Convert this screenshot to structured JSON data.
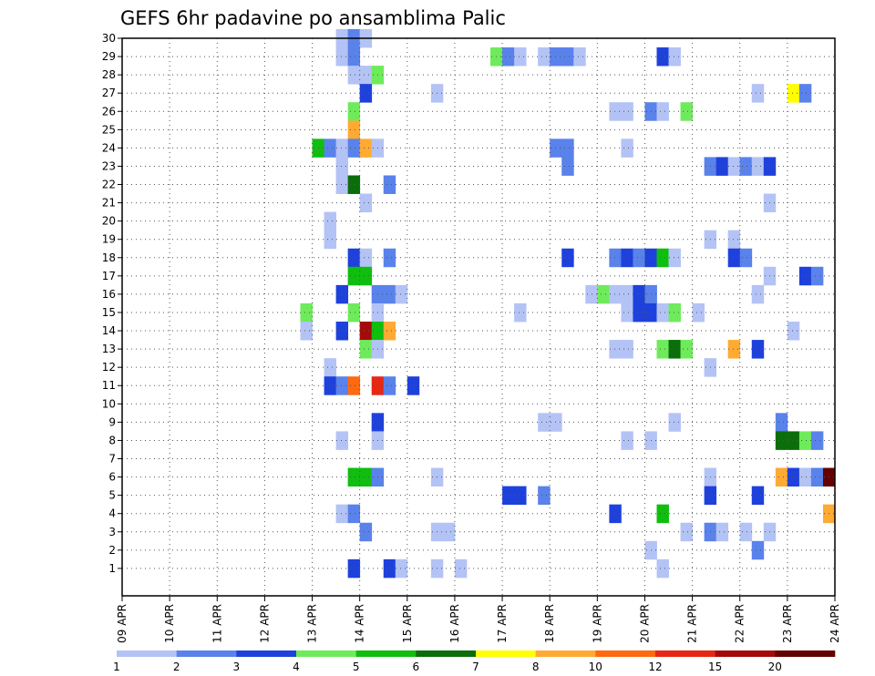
{
  "chart_data": {
    "type": "heatmap",
    "title": "GEFS 6hr padavine po ansamblima Palic",
    "x_ticks": [
      "09 APR",
      "10 APR",
      "11 APR",
      "12 APR",
      "13 APR",
      "14 APR",
      "15 APR",
      "16 APR",
      "17 APR",
      "18 APR",
      "19 APR",
      "20 APR",
      "21 APR",
      "22 APR",
      "23 APR",
      "24 APR"
    ],
    "y_ticks": [
      "1",
      "2",
      "3",
      "4",
      "5",
      "6",
      "7",
      "8",
      "9",
      "10",
      "11",
      "12",
      "13",
      "14",
      "15",
      "16",
      "17",
      "18",
      "19",
      "20",
      "21",
      "22",
      "23",
      "24",
      "25",
      "26",
      "27",
      "28",
      "29",
      "30"
    ],
    "x_range": [
      "09 APR",
      "24 APR"
    ],
    "y_range": [
      0,
      30
    ],
    "grid": true,
    "legend_placement": "bottom",
    "colorbar": {
      "colors": [
        "#b4c3f5",
        "#5a82eb",
        "#1e41dc",
        "#6eeb5a",
        "#0fbe0f",
        "#0a6e0a",
        "#ffff00",
        "#ffaa32",
        "#ff690f",
        "#e62814",
        "#a50a0a",
        "#640000"
      ],
      "labels": [
        "1",
        "2",
        "3",
        "4",
        "5",
        "6",
        "7",
        "8",
        "10",
        "12",
        "15",
        "20"
      ]
    },
    "cells_note_columns": "hour offset from 09 APR 00Z, member index, color level",
    "cells": [
      [
        108,
        30,
        1
      ],
      [
        114,
        30,
        2
      ],
      [
        120,
        30,
        1
      ],
      [
        108,
        29,
        1
      ],
      [
        114,
        29,
        2
      ],
      [
        186,
        29,
        4
      ],
      [
        192,
        29,
        2
      ],
      [
        198,
        29,
        1
      ],
      [
        210,
        29,
        1
      ],
      [
        216,
        29,
        2
      ],
      [
        222,
        29,
        2
      ],
      [
        228,
        29,
        1
      ],
      [
        270,
        29,
        3
      ],
      [
        276,
        29,
        1
      ],
      [
        114,
        28,
        1
      ],
      [
        120,
        28,
        1
      ],
      [
        126,
        28,
        4
      ],
      [
        120,
        27,
        3
      ],
      [
        156,
        27,
        1
      ],
      [
        318,
        27,
        1
      ],
      [
        336,
        27,
        7
      ],
      [
        342,
        27,
        2
      ],
      [
        114,
        26,
        4
      ],
      [
        246,
        26,
        1
      ],
      [
        252,
        26,
        1
      ],
      [
        264,
        26,
        2
      ],
      [
        270,
        26,
        1
      ],
      [
        282,
        26,
        4
      ],
      [
        114,
        25,
        8
      ],
      [
        96,
        24,
        5
      ],
      [
        102,
        24,
        2
      ],
      [
        108,
        24,
        1
      ],
      [
        114,
        24,
        2
      ],
      [
        120,
        24,
        8
      ],
      [
        126,
        24,
        1
      ],
      [
        216,
        24,
        2
      ],
      [
        222,
        24,
        2
      ],
      [
        252,
        24,
        1
      ],
      [
        108,
        23,
        1
      ],
      [
        222,
        23,
        2
      ],
      [
        294,
        23,
        2
      ],
      [
        300,
        23,
        3
      ],
      [
        306,
        23,
        1
      ],
      [
        312,
        23,
        2
      ],
      [
        318,
        23,
        1
      ],
      [
        324,
        23,
        3
      ],
      [
        108,
        22,
        1
      ],
      [
        114,
        22,
        6
      ],
      [
        132,
        22,
        2
      ],
      [
        120,
        21,
        1
      ],
      [
        324,
        21,
        1
      ],
      [
        102,
        20,
        1
      ],
      [
        102,
        19,
        1
      ],
      [
        294,
        19,
        1
      ],
      [
        306,
        19,
        1
      ],
      [
        114,
        18,
        3
      ],
      [
        120,
        18,
        1
      ],
      [
        132,
        18,
        2
      ],
      [
        222,
        18,
        3
      ],
      [
        246,
        18,
        2
      ],
      [
        252,
        18,
        3
      ],
      [
        258,
        18,
        2
      ],
      [
        264,
        18,
        3
      ],
      [
        270,
        18,
        5
      ],
      [
        276,
        18,
        1
      ],
      [
        306,
        18,
        3
      ],
      [
        312,
        18,
        2
      ],
      [
        114,
        17,
        5
      ],
      [
        120,
        17,
        5
      ],
      [
        324,
        17,
        1
      ],
      [
        342,
        17,
        3
      ],
      [
        348,
        17,
        2
      ],
      [
        108,
        16,
        3
      ],
      [
        126,
        16,
        2
      ],
      [
        132,
        16,
        2
      ],
      [
        138,
        16,
        1
      ],
      [
        234,
        16,
        1
      ],
      [
        240,
        16,
        4
      ],
      [
        246,
        16,
        1
      ],
      [
        252,
        16,
        1
      ],
      [
        258,
        16,
        3
      ],
      [
        264,
        16,
        2
      ],
      [
        318,
        16,
        1
      ],
      [
        90,
        15,
        4
      ],
      [
        114,
        15,
        4
      ],
      [
        126,
        15,
        1
      ],
      [
        198,
        15,
        1
      ],
      [
        252,
        15,
        1
      ],
      [
        258,
        15,
        3
      ],
      [
        264,
        15,
        3
      ],
      [
        270,
        15,
        1
      ],
      [
        276,
        15,
        4
      ],
      [
        288,
        15,
        1
      ],
      [
        90,
        14,
        1
      ],
      [
        108,
        14,
        3
      ],
      [
        120,
        14,
        11
      ],
      [
        126,
        14,
        5
      ],
      [
        132,
        14,
        8
      ],
      [
        336,
        14,
        1
      ],
      [
        120,
        13,
        4
      ],
      [
        126,
        13,
        1
      ],
      [
        246,
        13,
        1
      ],
      [
        252,
        13,
        1
      ],
      [
        270,
        13,
        4
      ],
      [
        276,
        13,
        6
      ],
      [
        282,
        13,
        4
      ],
      [
        306,
        13,
        8
      ],
      [
        318,
        13,
        3
      ],
      [
        102,
        12,
        1
      ],
      [
        294,
        12,
        1
      ],
      [
        102,
        11,
        3
      ],
      [
        108,
        11,
        2
      ],
      [
        114,
        11,
        9
      ],
      [
        126,
        11,
        10
      ],
      [
        132,
        11,
        2
      ],
      [
        144,
        11,
        3
      ],
      [
        126,
        9,
        3
      ],
      [
        210,
        9,
        1
      ],
      [
        216,
        9,
        1
      ],
      [
        276,
        9,
        1
      ],
      [
        330,
        9,
        2
      ],
      [
        108,
        8,
        1
      ],
      [
        126,
        8,
        1
      ],
      [
        252,
        8,
        1
      ],
      [
        264,
        8,
        1
      ],
      [
        330,
        8,
        6
      ],
      [
        336,
        8,
        6
      ],
      [
        342,
        8,
        4
      ],
      [
        348,
        8,
        2
      ],
      [
        114,
        6,
        5
      ],
      [
        120,
        6,
        5
      ],
      [
        126,
        6,
        2
      ],
      [
        156,
        6,
        1
      ],
      [
        294,
        6,
        1
      ],
      [
        330,
        6,
        8
      ],
      [
        336,
        6,
        3
      ],
      [
        342,
        6,
        1
      ],
      [
        348,
        6,
        2
      ],
      [
        354,
        6,
        12
      ],
      [
        192,
        5,
        3
      ],
      [
        198,
        5,
        3
      ],
      [
        210,
        5,
        2
      ],
      [
        294,
        5,
        3
      ],
      [
        318,
        5,
        3
      ],
      [
        108,
        4,
        1
      ],
      [
        114,
        4,
        2
      ],
      [
        246,
        4,
        3
      ],
      [
        270,
        4,
        5
      ],
      [
        354,
        4,
        8
      ],
      [
        120,
        3,
        2
      ],
      [
        156,
        3,
        1
      ],
      [
        162,
        3,
        1
      ],
      [
        282,
        3,
        1
      ],
      [
        294,
        3,
        2
      ],
      [
        300,
        3,
        1
      ],
      [
        312,
        3,
        1
      ],
      [
        324,
        3,
        1
      ],
      [
        264,
        2,
        1
      ],
      [
        318,
        2,
        2
      ],
      [
        114,
        1,
        3
      ],
      [
        132,
        1,
        3
      ],
      [
        138,
        1,
        1
      ],
      [
        156,
        1,
        1
      ],
      [
        168,
        1,
        1
      ],
      [
        270,
        1,
        1
      ]
    ]
  }
}
